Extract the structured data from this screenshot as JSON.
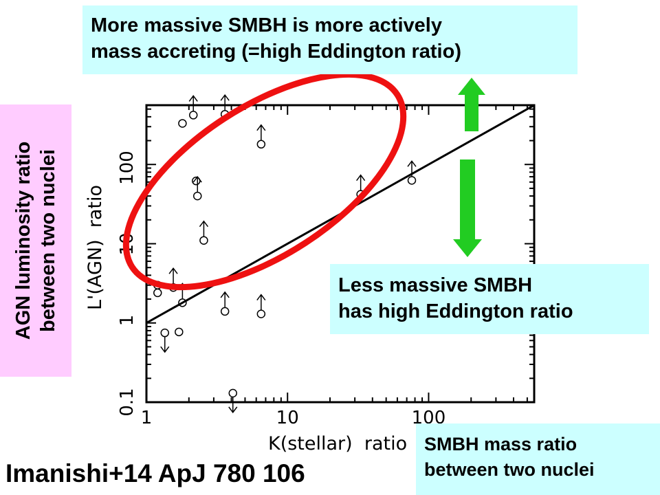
{
  "colors": {
    "annotation_box": "#ccffff",
    "label_box": "#ffccff",
    "ellipse": "#ee1111",
    "arrows": "#22cc22"
  },
  "annotations": {
    "top": "More massive SMBH is more actively\nmass accreting (=high Eddington ratio)",
    "middle": "Less massive SMBH\nhas high Eddington ratio",
    "bottom_right": "SMBH mass ratio\nbetween two nuclei",
    "left": "AGN luminosity ratio\nbetween two nuclei",
    "citation": "Imanishi+14 ApJ 780 106"
  },
  "chart_data": {
    "type": "scatter",
    "xlabel": "K(stellar)  ratio",
    "ylabel": "L'(AGN)  ratio",
    "xscale": "log",
    "yscale": "log",
    "xlim": [
      1,
      560
    ],
    "ylim": [
      0.1,
      560
    ],
    "xticks": [
      "1",
      "10",
      "100"
    ],
    "yticks": [
      "0.1",
      "1",
      "10",
      "100"
    ],
    "grid": false,
    "points": [
      {
        "x": 1.8,
        "y": 330,
        "limit": "none"
      },
      {
        "x": 2.15,
        "y": 420,
        "limit": "lower"
      },
      {
        "x": 3.6,
        "y": 430,
        "limit": "lower"
      },
      {
        "x": 6.5,
        "y": 180,
        "limit": "lower"
      },
      {
        "x": 2.25,
        "y": 62,
        "limit": "none"
      },
      {
        "x": 2.3,
        "y": 40,
        "limit": "lower"
      },
      {
        "x": 2.55,
        "y": 11,
        "limit": "lower"
      },
      {
        "x": 1.2,
        "y": 3.0,
        "limit": "none"
      },
      {
        "x": 1.2,
        "y": 2.4,
        "limit": "none"
      },
      {
        "x": 1.55,
        "y": 2.8,
        "limit": "lower"
      },
      {
        "x": 1.8,
        "y": 1.8,
        "limit": "lower"
      },
      {
        "x": 3.6,
        "y": 1.4,
        "limit": "lower"
      },
      {
        "x": 6.5,
        "y": 1.3,
        "limit": "lower"
      },
      {
        "x": 1.35,
        "y": 0.75,
        "limit": "upper"
      },
      {
        "x": 1.7,
        "y": 0.77,
        "limit": "none"
      },
      {
        "x": 4.1,
        "y": 0.13,
        "limit": "upper"
      },
      {
        "x": 33,
        "y": 42,
        "limit": "lower"
      },
      {
        "x": 76,
        "y": 63,
        "limit": "lower"
      }
    ],
    "line": {
      "x": [
        1,
        560
      ],
      "y": [
        1,
        560
      ]
    }
  }
}
